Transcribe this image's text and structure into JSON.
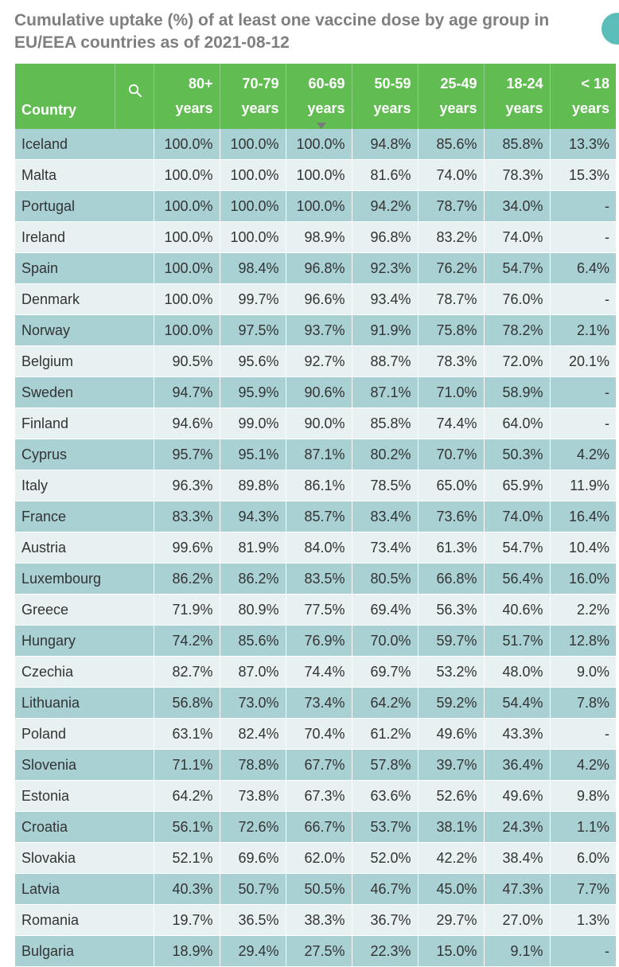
{
  "title": "Cumulative uptake (%) of at least one vaccine dose by age group in EU/EEA countries as of 2021-08-12",
  "colors": {
    "header_bg": "#61bc52",
    "row_odd": "#a9d1d4",
    "row_even": "#e7f1f1",
    "title_text": "#7f7f7f"
  },
  "header": {
    "country": "Country",
    "search_icon": "search-icon",
    "columns": [
      [
        "80+",
        "years"
      ],
      [
        "70-79",
        "years"
      ],
      [
        "60-69",
        "years"
      ],
      [
        "50-59",
        "years"
      ],
      [
        "25-49",
        "years"
      ],
      [
        "18-24",
        "years"
      ],
      [
        "< 18",
        "years"
      ]
    ]
  },
  "rows": [
    [
      "Iceland",
      "100.0%",
      "100.0%",
      "100.0%",
      "94.8%",
      "85.6%",
      "85.8%",
      "13.3%"
    ],
    [
      "Malta",
      "100.0%",
      "100.0%",
      "100.0%",
      "81.6%",
      "74.0%",
      "78.3%",
      "15.3%"
    ],
    [
      "Portugal",
      "100.0%",
      "100.0%",
      "100.0%",
      "94.2%",
      "78.7%",
      "34.0%",
      "-"
    ],
    [
      "Ireland",
      "100.0%",
      "100.0%",
      "98.9%",
      "96.8%",
      "83.2%",
      "74.0%",
      "-"
    ],
    [
      "Spain",
      "100.0%",
      "98.4%",
      "96.8%",
      "92.3%",
      "76.2%",
      "54.7%",
      "6.4%"
    ],
    [
      "Denmark",
      "100.0%",
      "99.7%",
      "96.6%",
      "93.4%",
      "78.7%",
      "76.0%",
      "-"
    ],
    [
      "Norway",
      "100.0%",
      "97.5%",
      "93.7%",
      "91.9%",
      "75.8%",
      "78.2%",
      "2.1%"
    ],
    [
      "Belgium",
      "90.5%",
      "95.6%",
      "92.7%",
      "88.7%",
      "78.3%",
      "72.0%",
      "20.1%"
    ],
    [
      "Sweden",
      "94.7%",
      "95.9%",
      "90.6%",
      "87.1%",
      "71.0%",
      "58.9%",
      "-"
    ],
    [
      "Finland",
      "94.6%",
      "99.0%",
      "90.0%",
      "85.8%",
      "74.4%",
      "64.0%",
      "-"
    ],
    [
      "Cyprus",
      "95.7%",
      "95.1%",
      "87.1%",
      "80.2%",
      "70.7%",
      "50.3%",
      "4.2%"
    ],
    [
      "Italy",
      "96.3%",
      "89.8%",
      "86.1%",
      "78.5%",
      "65.0%",
      "65.9%",
      "11.9%"
    ],
    [
      "France",
      "83.3%",
      "94.3%",
      "85.7%",
      "83.4%",
      "73.6%",
      "74.0%",
      "16.4%"
    ],
    [
      "Austria",
      "99.6%",
      "81.9%",
      "84.0%",
      "73.4%",
      "61.3%",
      "54.7%",
      "10.4%"
    ],
    [
      "Luxembourg",
      "86.2%",
      "86.2%",
      "83.5%",
      "80.5%",
      "66.8%",
      "56.4%",
      "16.0%"
    ],
    [
      "Greece",
      "71.9%",
      "80.9%",
      "77.5%",
      "69.4%",
      "56.3%",
      "40.6%",
      "2.2%"
    ],
    [
      "Hungary",
      "74.2%",
      "85.6%",
      "76.9%",
      "70.0%",
      "59.7%",
      "51.7%",
      "12.8%"
    ],
    [
      "Czechia",
      "82.7%",
      "87.0%",
      "74.4%",
      "69.7%",
      "53.2%",
      "48.0%",
      "9.0%"
    ],
    [
      "Lithuania",
      "56.8%",
      "73.0%",
      "73.4%",
      "64.2%",
      "59.2%",
      "54.4%",
      "7.8%"
    ],
    [
      "Poland",
      "63.1%",
      "82.4%",
      "70.4%",
      "61.2%",
      "49.6%",
      "43.3%",
      "-"
    ],
    [
      "Slovenia",
      "71.1%",
      "78.8%",
      "67.7%",
      "57.8%",
      "39.7%",
      "36.4%",
      "4.2%"
    ],
    [
      "Estonia",
      "64.2%",
      "73.8%",
      "67.3%",
      "63.6%",
      "52.6%",
      "49.6%",
      "9.8%"
    ],
    [
      "Croatia",
      "56.1%",
      "72.6%",
      "66.7%",
      "53.7%",
      "38.1%",
      "24.3%",
      "1.1%"
    ],
    [
      "Slovakia",
      "52.1%",
      "69.6%",
      "62.0%",
      "52.0%",
      "42.2%",
      "38.4%",
      "6.0%"
    ],
    [
      "Latvia",
      "40.3%",
      "50.7%",
      "50.5%",
      "46.7%",
      "45.0%",
      "47.3%",
      "7.7%"
    ],
    [
      "Romania",
      "19.7%",
      "36.5%",
      "38.3%",
      "36.7%",
      "29.7%",
      "27.0%",
      "1.3%"
    ],
    [
      "Bulgaria",
      "18.9%",
      "29.4%",
      "27.5%",
      "22.3%",
      "15.0%",
      "9.1%",
      "-"
    ]
  ]
}
